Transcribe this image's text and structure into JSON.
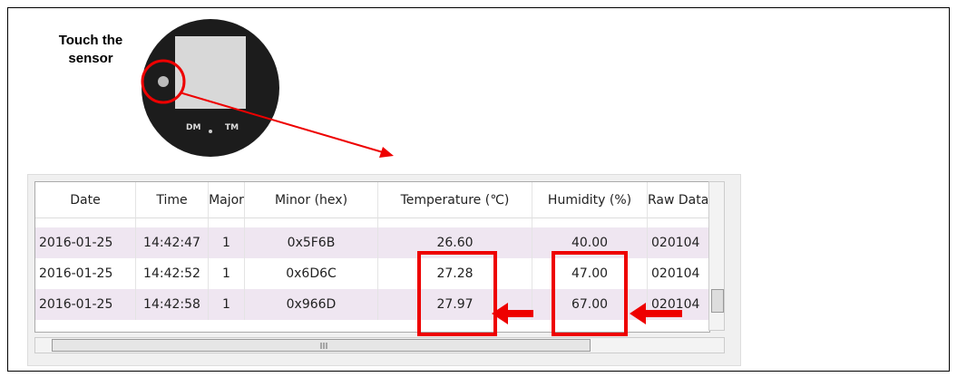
{
  "caption": [
    "Touch the",
    "sensor"
  ],
  "device_labels": [
    "DM",
    "TM"
  ],
  "table": {
    "headers": [
      "Date",
      "Time",
      "Major",
      "Minor (hex)",
      "Temperature (℃)",
      "Humidity (%)",
      "Raw Data"
    ],
    "rows": [
      [
        "2016-01-25",
        "14:42:47",
        "1",
        "0x5F6B",
        "26.60",
        "40.00",
        "020104"
      ],
      [
        "2016-01-25",
        "14:42:52",
        "1",
        "0x6D6C",
        "27.28",
        "47.00",
        "020104"
      ],
      [
        "2016-01-25",
        "14:42:58",
        "1",
        "0x966D",
        "27.97",
        "67.00",
        "020104"
      ]
    ]
  }
}
